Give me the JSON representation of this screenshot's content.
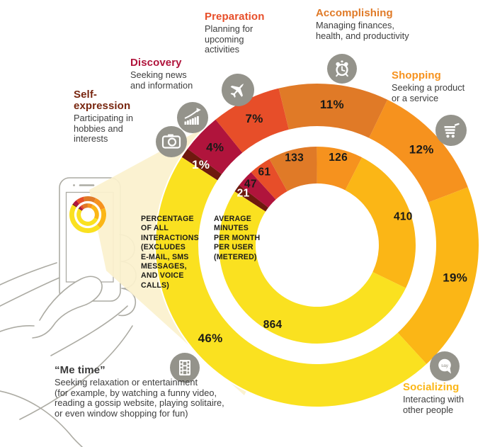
{
  "chart_data": {
    "type": "pie",
    "variant": "concentric-double-donut",
    "start_angle_deg": -57,
    "legend_position": "callouts-around-chart",
    "rings": [
      {
        "id": "outer",
        "name": "Percentage of all interactions",
        "unit": "%"
      },
      {
        "id": "inner",
        "name": "Average minutes per month per user",
        "unit": "minutes"
      }
    ],
    "categories": [
      "Self-expression",
      "Discovery",
      "Preparation",
      "Accomplishing",
      "Shopping",
      "Socializing",
      "“Me time”"
    ],
    "segments": [
      {
        "label": "Self-expression",
        "percent": 1,
        "minutes": 21,
        "color": "#6E190E",
        "text_color": "#FFFFFF"
      },
      {
        "label": "Discovery",
        "percent": 4,
        "minutes": 47,
        "color": "#B0143C",
        "text_color": "#1A1A18"
      },
      {
        "label": "Preparation",
        "percent": 7,
        "minutes": 61,
        "color": "#E74E29",
        "text_color": "#1A1A18"
      },
      {
        "label": "Accomplishing",
        "percent": 11,
        "minutes": 133,
        "color": "#E07A27",
        "text_color": "#1A1A18"
      },
      {
        "label": "Shopping",
        "percent": 12,
        "minutes": 126,
        "color": "#F6921E",
        "text_color": "#1A1A18"
      },
      {
        "label": "Socializing",
        "percent": 19,
        "minutes": 410,
        "color": "#FBB616",
        "text_color": "#1A1A18"
      },
      {
        "label": "“Me time”",
        "percent": 46,
        "minutes": 864,
        "color": "#FAE120",
        "text_color": "#1A1A18",
        "outer_label_angle": 229
      }
    ],
    "ring_annotations": {
      "outer": "PERCENTAGE\nOF ALL\nINTERACTIONS\n(EXCLUDES\nE-MAIL, SMS\nMESSAGES,\nAND VOICE\nCALLS)",
      "inner": "AVERAGE\nMINUTES\nPER MONTH\nPER USER\n(METERED)"
    }
  },
  "callouts": {
    "self_expression": {
      "title": "Self-\nexpression",
      "desc": "Participating in\nhobbies and\ninterests",
      "color": "#78260F",
      "icon": "camera-icon"
    },
    "discovery": {
      "title": "Discovery",
      "desc": "Seeking news\nand information",
      "color": "#B0143C",
      "icon": "growth-chart-icon"
    },
    "preparation": {
      "title": "Preparation",
      "desc": "Planning for\nupcoming\nactivities",
      "color": "#E74E29",
      "icon": "airplane-icon"
    },
    "accomplishing": {
      "title": "Accomplishing",
      "desc": "Managing finances,\nhealth, and productivity",
      "color": "#E07A27",
      "icon": "alarm-clock-icon"
    },
    "shopping": {
      "title": "Shopping",
      "desc": "Seeking a product\nor a service",
      "color": "#F6921E",
      "icon": "shopping-cart-icon"
    },
    "socializing": {
      "title": "Socializing",
      "desc": "Interacting with\nother people",
      "color": "#FBB616",
      "icon": "speech-bubble-icon"
    },
    "me_time": {
      "title": "“Me time”",
      "desc": "Seeking relaxation or entertainment\n(for example, by watching a funny video,\nreading a gossip website, playing solitaire,\nor even window shopping for fun)",
      "color": "#3B3B3B",
      "icon": "film-strip-icon"
    }
  },
  "icons": {
    "speech_bubble_text": "say"
  },
  "colors": {
    "beam": "#FBF1CE",
    "icon_circle": "#94938B",
    "body_text": "#3E3E3E",
    "label_dark": "#1A1A18",
    "hand_line": "#ACABA3"
  }
}
